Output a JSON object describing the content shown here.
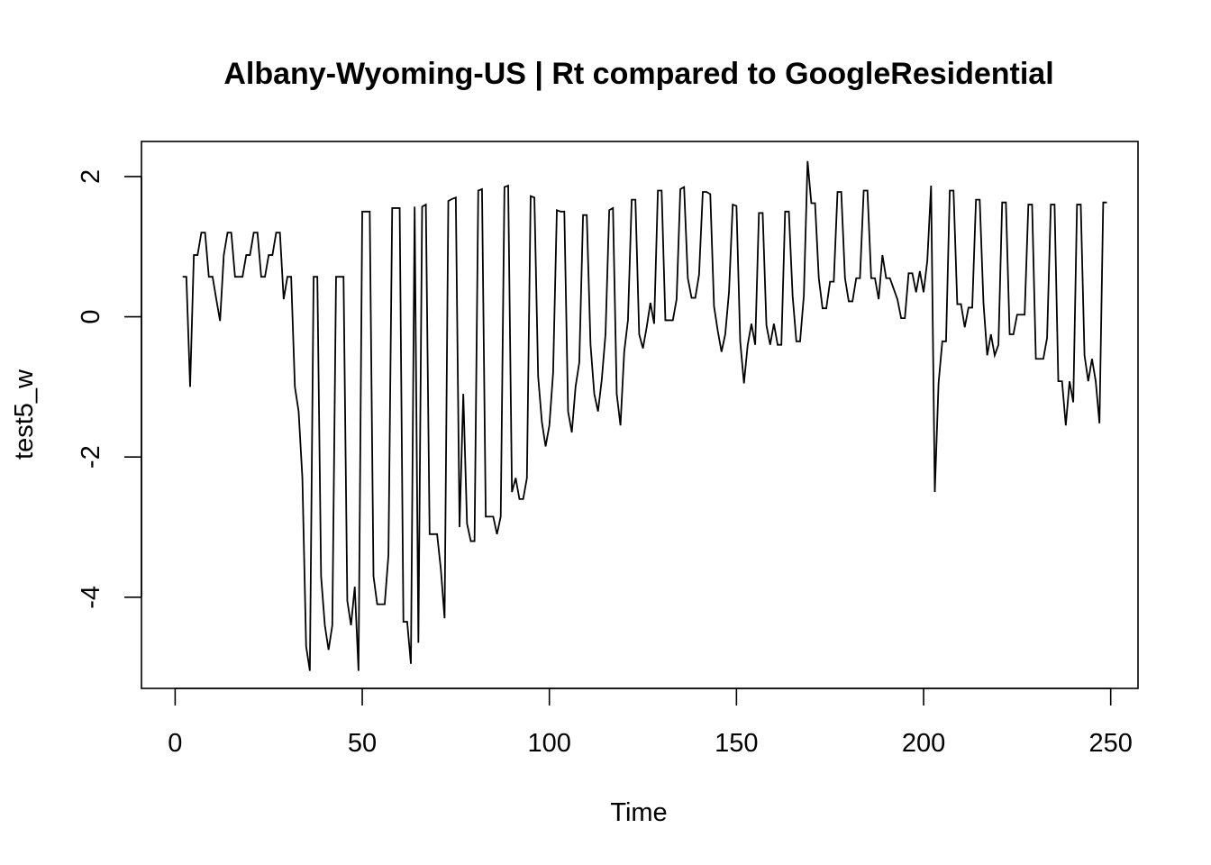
{
  "chart_data": {
    "type": "line",
    "title": "Albany-Wyoming-US | Rt compared to GoogleResidential",
    "xlabel": "Time",
    "ylabel": "test5_w",
    "xlim": [
      -9,
      257.3
    ],
    "ylim": [
      -5.3,
      2.5
    ],
    "xticks": [
      0,
      50,
      100,
      150,
      200,
      250
    ],
    "xtick_labels": [
      "0",
      "50",
      "100",
      "150",
      "200",
      "250"
    ],
    "yticks": [
      -4,
      -2,
      0,
      2
    ],
    "ytick_labels": [
      "-4",
      "-2",
      "0",
      "2"
    ],
    "grid": false,
    "legend": "none",
    "line_color": "#000000",
    "series": [
      {
        "x_start": 2,
        "values": [
          0.57,
          0.57,
          -1.0,
          0.88,
          0.88,
          1.2,
          1.2,
          0.57,
          0.57,
          0.25,
          -0.06,
          0.88,
          1.2,
          1.2,
          0.57,
          0.57,
          0.57,
          0.88,
          0.88,
          1.2,
          1.2,
          0.57,
          0.57,
          0.88,
          0.88,
          1.2,
          1.2,
          0.25,
          0.57,
          0.57,
          -1.0,
          -1.35,
          -2.3,
          -4.7,
          -5.05,
          0.57,
          0.57,
          -3.7,
          -4.4,
          -4.75,
          -4.4,
          0.57,
          0.57,
          0.57,
          -4.05,
          -4.4,
          -3.85,
          -5.05,
          1.5,
          1.5,
          1.5,
          -3.7,
          -4.1,
          -4.1,
          -4.1,
          -3.4,
          1.55,
          1.55,
          1.55,
          -4.35,
          -4.35,
          -4.95,
          1.57,
          -4.65,
          1.57,
          1.6,
          -3.1,
          -3.1,
          -3.1,
          -3.6,
          -4.3,
          1.65,
          1.68,
          1.7,
          -3.0,
          -1.1,
          -2.95,
          -3.2,
          -3.2,
          1.8,
          1.82,
          -2.85,
          -2.85,
          -2.85,
          -3.1,
          -2.85,
          1.85,
          1.87,
          -2.5,
          -2.3,
          -2.6,
          -2.6,
          -2.3,
          1.72,
          1.7,
          -0.85,
          -1.5,
          -1.85,
          -1.55,
          -0.8,
          1.52,
          1.5,
          1.5,
          -1.35,
          -1.65,
          -1.0,
          -0.65,
          1.45,
          1.45,
          -0.4,
          -1.1,
          -1.35,
          -0.9,
          -0.25,
          1.52,
          1.55,
          -1.1,
          -1.55,
          -0.5,
          -0.05,
          1.67,
          1.67,
          -0.25,
          -0.45,
          -0.15,
          0.2,
          -0.1,
          1.8,
          1.8,
          -0.05,
          -0.05,
          -0.05,
          0.25,
          1.82,
          1.85,
          0.55,
          0.27,
          0.27,
          0.6,
          1.78,
          1.78,
          1.75,
          0.15,
          -0.2,
          -0.5,
          -0.25,
          0.35,
          1.6,
          1.58,
          -0.35,
          -0.95,
          -0.4,
          -0.1,
          -0.4,
          1.48,
          1.48,
          -0.12,
          -0.4,
          -0.1,
          -0.4,
          -0.4,
          1.5,
          1.5,
          0.3,
          -0.35,
          -0.35,
          0.3,
          2.22,
          1.62,
          1.62,
          0.55,
          0.12,
          0.12,
          0.5,
          0.5,
          1.78,
          1.78,
          0.55,
          0.22,
          0.22,
          0.55,
          0.55,
          1.8,
          1.8,
          0.55,
          0.55,
          0.25,
          0.88,
          0.55,
          0.55,
          0.4,
          0.25,
          -0.02,
          -0.02,
          0.62,
          0.62,
          0.35,
          0.65,
          0.35,
          0.8,
          1.87,
          -2.5,
          -0.95,
          -0.35,
          -0.35,
          1.8,
          1.8,
          0.18,
          0.18,
          -0.15,
          0.13,
          0.13,
          1.67,
          1.67,
          0.2,
          -0.55,
          -0.25,
          -0.55,
          -0.4,
          1.63,
          1.63,
          -0.25,
          -0.25,
          0.03,
          0.03,
          0.03,
          1.6,
          1.6,
          -0.6,
          -0.6,
          -0.6,
          -0.3,
          1.6,
          1.6,
          -0.92,
          -0.92,
          -1.55,
          -0.92,
          -1.22,
          1.6,
          1.6,
          -0.55,
          -0.92,
          -0.6,
          -0.92,
          -1.52,
          1.63,
          1.63
        ]
      }
    ]
  }
}
